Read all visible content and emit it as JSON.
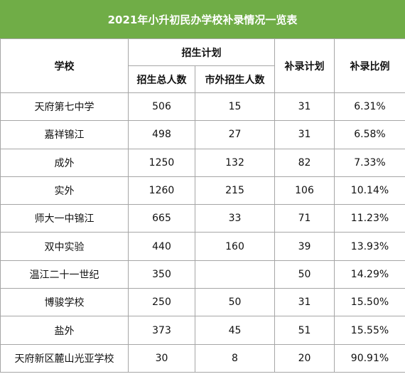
{
  "title": "2021年小升初民办学校补录情况一览表",
  "headers": {
    "school": "学校",
    "enroll_plan": "招生计划",
    "total": "招生总人数",
    "outside": "市外招生人数",
    "supplement_plan": "补录计划",
    "supplement_ratio": "补录比例"
  },
  "rows": [
    {
      "school": "天府第七中学",
      "total": "506",
      "outside": "15",
      "plan": "31",
      "ratio": "6.31%"
    },
    {
      "school": "嘉祥锦江",
      "total": "498",
      "outside": "27",
      "plan": "31",
      "ratio": "6.58%"
    },
    {
      "school": "成外",
      "total": "1250",
      "outside": "132",
      "plan": "82",
      "ratio": "7.33%"
    },
    {
      "school": "实外",
      "total": "1260",
      "outside": "215",
      "plan": "106",
      "ratio": "10.14%"
    },
    {
      "school": "师大一中锦江",
      "total": "665",
      "outside": "33",
      "plan": "71",
      "ratio": "11.23%"
    },
    {
      "school": "双中实验",
      "total": "440",
      "outside": "160",
      "plan": "39",
      "ratio": "13.93%"
    },
    {
      "school": "温江二十一世纪",
      "total": "350",
      "outside": "",
      "plan": "50",
      "ratio": "14.29%"
    },
    {
      "school": "博骏学校",
      "total": "250",
      "outside": "50",
      "plan": "31",
      "ratio": "15.50%"
    },
    {
      "school": "盐外",
      "total": "373",
      "outside": "45",
      "plan": "51",
      "ratio": "15.55%"
    },
    {
      "school": "天府新区麓山光亚学校",
      "total": "30",
      "outside": "8",
      "plan": "20",
      "ratio": "90.91%"
    }
  ]
}
